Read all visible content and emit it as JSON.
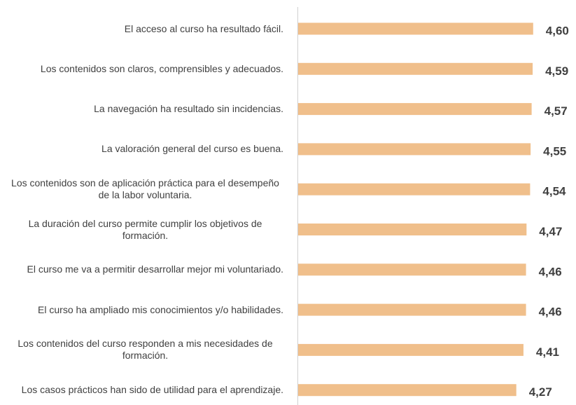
{
  "chart_data": {
    "type": "hbar",
    "categories": [
      "El acceso al curso ha resultado fácil.",
      "Los contenidos son claros, comprensibles y adecuados.",
      "La navegación ha resultado sin incidencias.",
      "La valoración general del curso es buena.",
      "Los contenidos son de aplicación práctica para el desempeño de la labor voluntaria.",
      "La duración del curso permite cumplir los objetivos de formación.",
      "El curso me va a permitir desarrollar mejor mi voluntariado.",
      "El curso ha ampliado mis conocimientos y/o habilidades.",
      "Los contenidos del curso responden a mis necesidades de formación.",
      "Los casos prácticos han sido de utilidad para el aprendizaje."
    ],
    "values": [
      4.6,
      4.59,
      4.57,
      4.55,
      4.54,
      4.47,
      4.46,
      4.46,
      4.41,
      4.27
    ],
    "value_labels": [
      "4,60",
      "4,59",
      "4,57",
      "4,55",
      "4,54",
      "4,47",
      "4,46",
      "4,46",
      "4,41",
      "4,27"
    ],
    "color": "#f0bf8b",
    "xlim": [
      0,
      5
    ]
  }
}
